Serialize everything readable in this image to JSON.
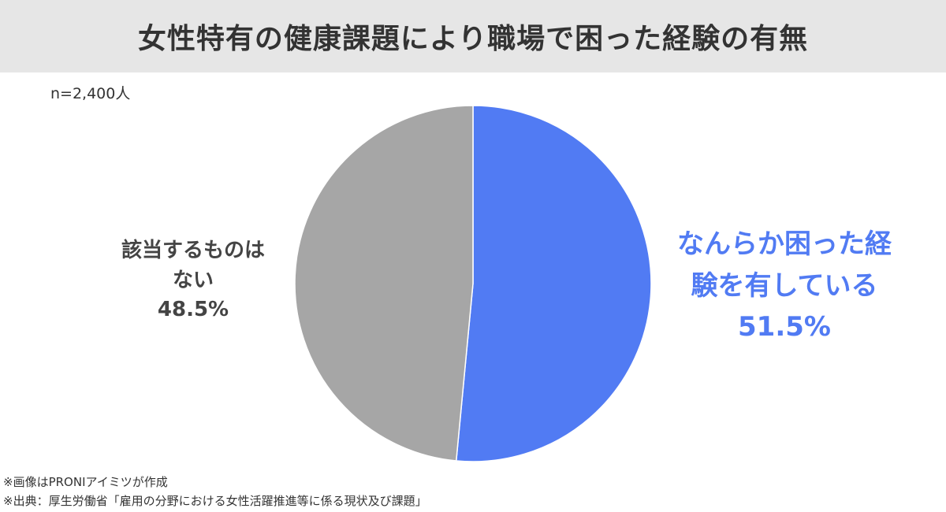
{
  "header": {
    "title": "女性特有の健康課題により職場で困った経験の有無"
  },
  "sample_size": "n=2,400人",
  "chart_data": {
    "type": "pie",
    "title": "女性特有の健康課題により職場で困った経験の有無",
    "slices": [
      {
        "label_lines": [
          "なんらか困った経",
          "験を有している"
        ],
        "value": 51.5,
        "value_label": "51.5%",
        "color": "#517bf3"
      },
      {
        "label_lines": [
          "該当するものは",
          "ない"
        ],
        "value": 48.5,
        "value_label": "48.5%",
        "color": "#a6a6a6"
      }
    ],
    "start": "12 o'clock",
    "direction": "clockwise",
    "legend": "none"
  },
  "footnotes": {
    "image_credit": "※画像はPRONIアイミツが作成",
    "source": "※出典：厚生労働省「雇用の分野における女性活躍推進等に係る現状及び課題」"
  }
}
